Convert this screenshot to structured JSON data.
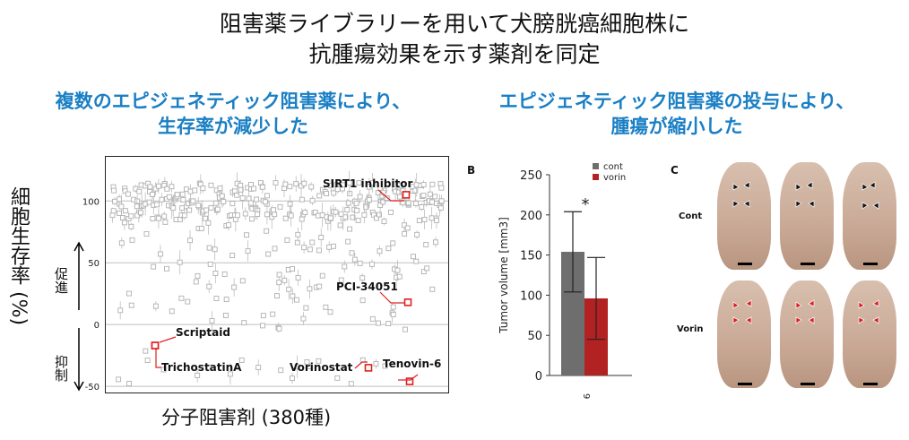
{
  "title": {
    "line1": "阻害薬ライブラリーを用いて犬膀胱癌細胞株に",
    "line2": "抗腫瘍効果を示す薬剤を同定"
  },
  "left_panel": {
    "heading_line1": "複数のエピジェネティック阻害薬により、",
    "heading_line2": "生存率が減少した",
    "ylabel": "細胞生存率 (%)",
    "promote_label": "促進",
    "suppress_label": "抑制",
    "xlabel": "分子阻害剤 (380種)",
    "annotations": [
      "SIRT1 inhibitor",
      "PCI-34051",
      "Scriptaid",
      "TrichostatinA",
      "Vorinostat",
      "Tenovin-6"
    ]
  },
  "right_panel": {
    "heading_line1": "エピジェネティック阻害薬の投与により、",
    "heading_line2": "腫瘍が縮小した",
    "panel_b_letter": "B",
    "panel_c_letter": "C",
    "group_cont": "Cont",
    "group_vorin": "Vorin"
  },
  "chart_data": [
    {
      "type": "scatter",
      "title": "",
      "xlabel": "分子阻害剤 (380種)",
      "ylabel": "細胞生存率 (%)",
      "ylim": [
        -55,
        135
      ],
      "yticks": [
        -50,
        0,
        50,
        100
      ],
      "highlighted_points": [
        {
          "label": "SIRT1 inhibitor",
          "y": 105
        },
        {
          "label": "PCI-34051",
          "y": 18
        },
        {
          "label": "Scriptaid",
          "y": -17
        },
        {
          "label": "TrichostatinA",
          "y": -17
        },
        {
          "label": "Vorinostat",
          "y": -35
        },
        {
          "label": "Tenovin-6",
          "y": -46
        }
      ]
    },
    {
      "type": "bar",
      "categories": [
        "cont",
        "vorin"
      ],
      "values": [
        154,
        96
      ],
      "errors": [
        50,
        51
      ],
      "ylabel": "Tumor volume [mm3]",
      "ylim": [
        0,
        250
      ],
      "yticks": [
        0,
        50,
        100,
        150,
        200,
        250
      ],
      "xtick": "9",
      "legend": [
        "cont",
        "vorin"
      ],
      "colors": [
        "#6e6e6e",
        "#b22222"
      ],
      "significance": "*"
    }
  ]
}
